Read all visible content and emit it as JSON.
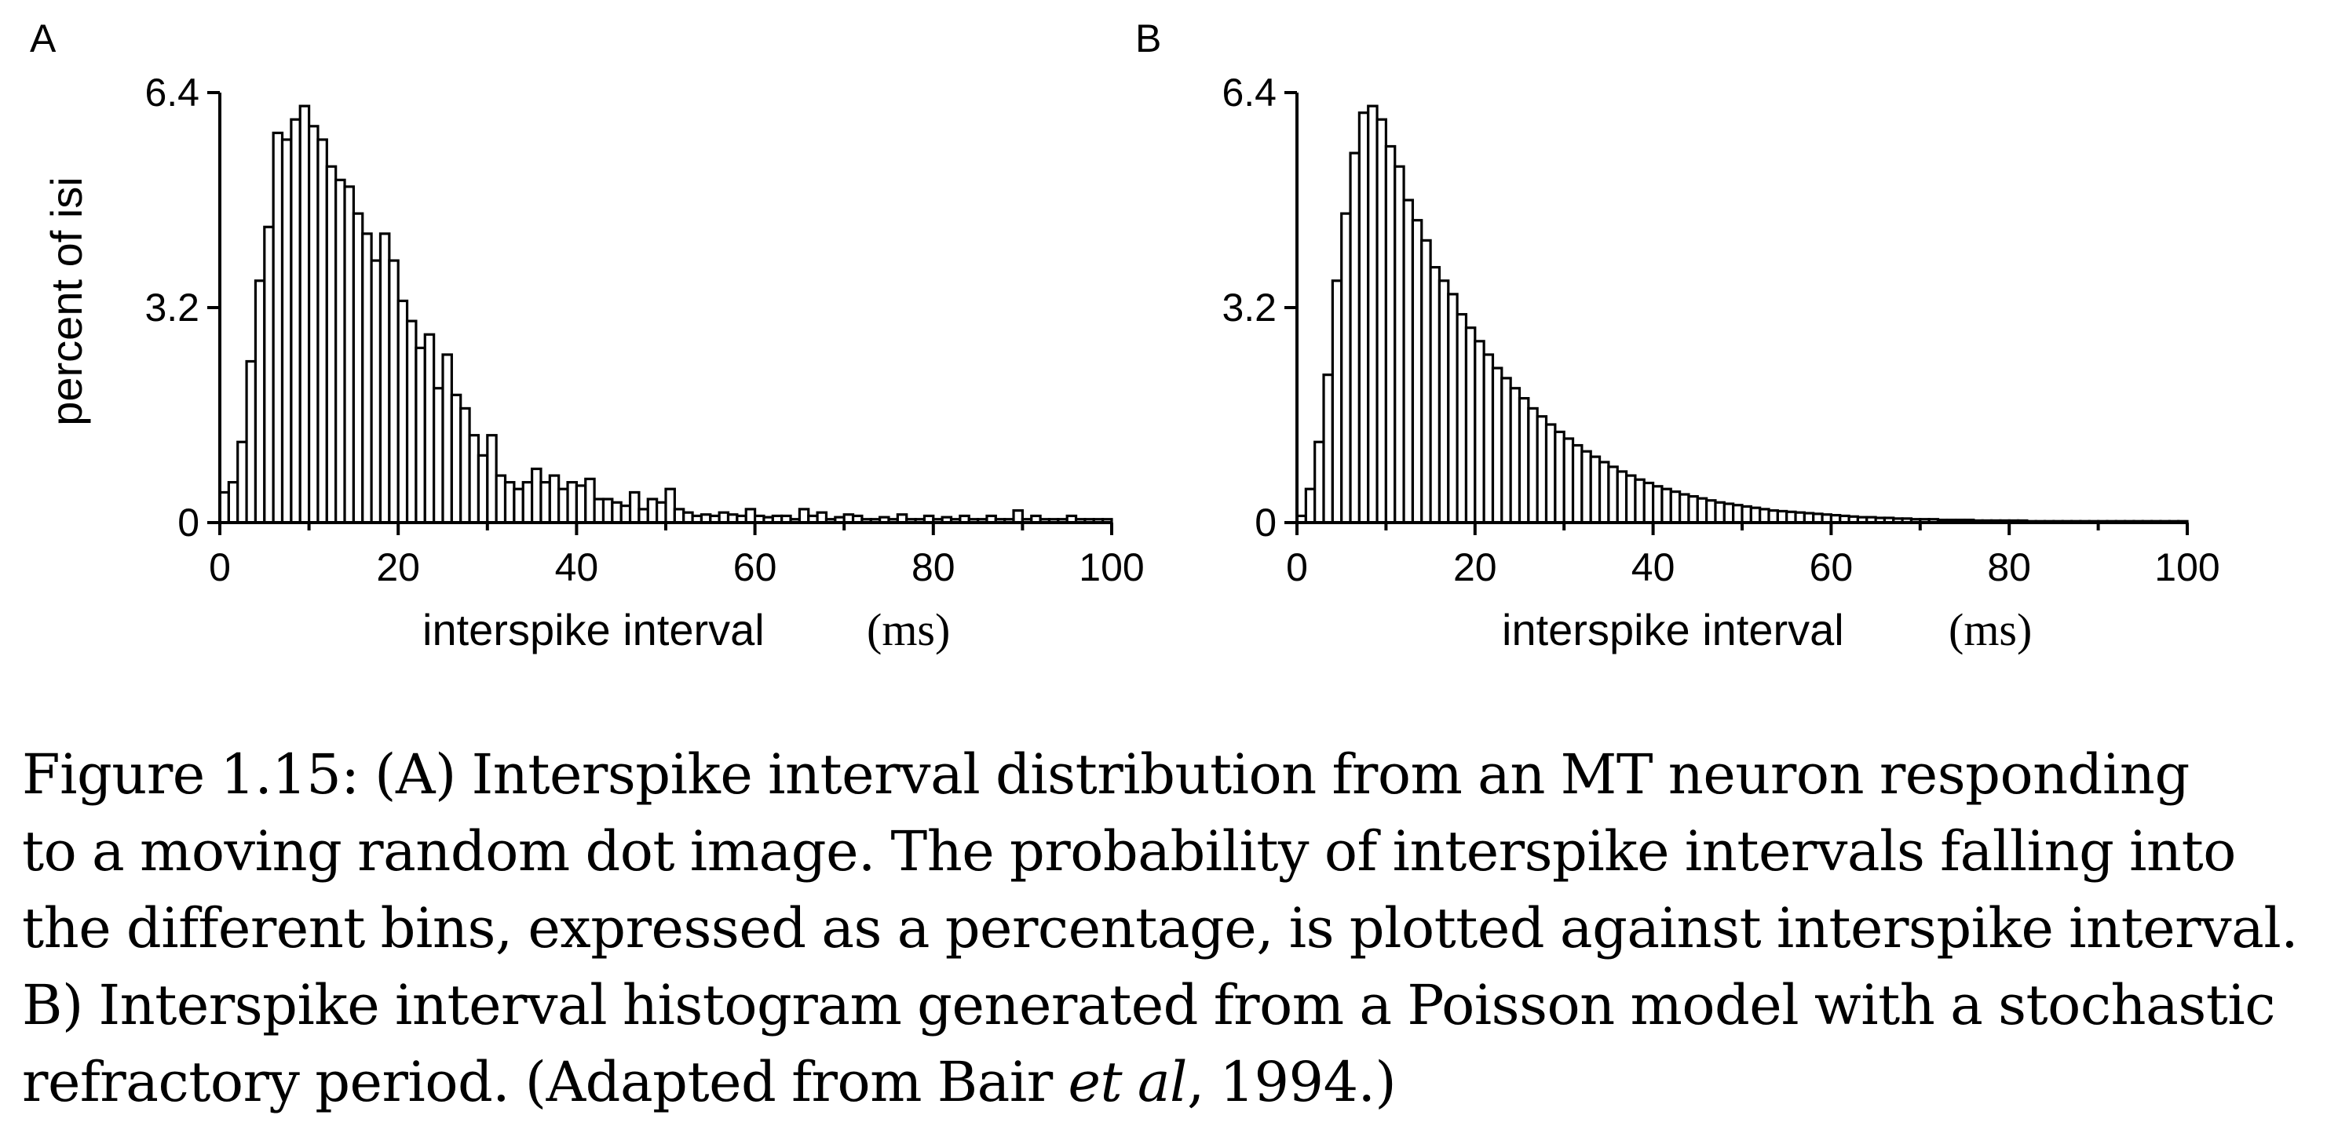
{
  "chart_data": [
    {
      "type": "bar",
      "panel_label": "A",
      "xlabel": "interspike interval",
      "xlabel_unit": "(ms)",
      "ylabel": "percent of isi",
      "xlim": [
        0,
        100
      ],
      "ylim": [
        0,
        6.4
      ],
      "x_ticks": [
        "0",
        "20",
        "40",
        "60",
        "80",
        "100"
      ],
      "y_ticks": [
        "0",
        "3.2",
        "6.4"
      ],
      "bin_width_ms": 1,
      "values": [
        0.45,
        0.6,
        1.2,
        2.4,
        3.6,
        4.4,
        5.8,
        5.7,
        6.0,
        6.2,
        5.9,
        5.7,
        5.3,
        5.1,
        5.0,
        4.6,
        4.3,
        3.9,
        4.3,
        3.9,
        3.3,
        3.0,
        2.6,
        2.8,
        2.0,
        2.5,
        1.9,
        1.7,
        1.3,
        1.0,
        1.3,
        0.7,
        0.6,
        0.5,
        0.6,
        0.8,
        0.6,
        0.7,
        0.5,
        0.6,
        0.55,
        0.65,
        0.35,
        0.35,
        0.3,
        0.25,
        0.45,
        0.2,
        0.35,
        0.3,
        0.5,
        0.2,
        0.15,
        0.1,
        0.12,
        0.1,
        0.15,
        0.12,
        0.1,
        0.2,
        0.1,
        0.08,
        0.1,
        0.1,
        0.05,
        0.2,
        0.1,
        0.15,
        0.05,
        0.08,
        0.12,
        0.1,
        0.05,
        0.05,
        0.08,
        0.05,
        0.12,
        0.05,
        0.05,
        0.1,
        0.05,
        0.08,
        0.05,
        0.1,
        0.05,
        0.05,
        0.1,
        0.05,
        0.05,
        0.18,
        0.05,
        0.1,
        0.05,
        0.05,
        0.05,
        0.1,
        0.05,
        0.05,
        0.05,
        0.05
      ]
    },
    {
      "type": "bar",
      "panel_label": "B",
      "xlabel": "interspike interval",
      "xlabel_unit": "(ms)",
      "ylabel": "",
      "xlim": [
        0,
        100
      ],
      "ylim": [
        0,
        6.4
      ],
      "x_ticks": [
        "0",
        "20",
        "40",
        "60",
        "80",
        "100"
      ],
      "y_ticks": [
        "0",
        "3.2",
        "6.4"
      ],
      "bin_width_ms": 1,
      "values": [
        0.1,
        0.5,
        1.2,
        2.2,
        3.6,
        4.6,
        5.5,
        6.1,
        6.2,
        6.0,
        5.6,
        5.3,
        4.8,
        4.5,
        4.2,
        3.8,
        3.6,
        3.4,
        3.1,
        2.9,
        2.7,
        2.5,
        2.3,
        2.15,
        2.0,
        1.85,
        1.7,
        1.58,
        1.46,
        1.35,
        1.25,
        1.15,
        1.06,
        0.98,
        0.9,
        0.83,
        0.76,
        0.7,
        0.64,
        0.59,
        0.54,
        0.5,
        0.46,
        0.42,
        0.39,
        0.36,
        0.33,
        0.3,
        0.28,
        0.26,
        0.24,
        0.22,
        0.2,
        0.18,
        0.17,
        0.16,
        0.15,
        0.14,
        0.13,
        0.12,
        0.11,
        0.1,
        0.09,
        0.08,
        0.08,
        0.07,
        0.07,
        0.06,
        0.06,
        0.05,
        0.05,
        0.05,
        0.04,
        0.04,
        0.04,
        0.04,
        0.03,
        0.03,
        0.03,
        0.03,
        0.03,
        0.03,
        0.02,
        0.02,
        0.02,
        0.02,
        0.02,
        0.02,
        0.02,
        0.02,
        0.02,
        0.02,
        0.02,
        0.02,
        0.02,
        0.02,
        0.02,
        0.02,
        0.02,
        0.02
      ]
    }
  ],
  "caption": {
    "line1": "Figure 1.15: (A) Interspike interval distribution from an MT neuron responding",
    "line2": "to a moving random dot image. The probability of interspike intervals falling into",
    "line3": "the different bins, expressed as a percentage, is plotted against interspike interval.",
    "line4": "B) Interspike interval histogram generated from a Poisson model with a stochastic",
    "line5_start": "refractory period. (Adapted from Bair ",
    "line5_italic": "et al",
    "line5_end": ", 1994.)"
  }
}
